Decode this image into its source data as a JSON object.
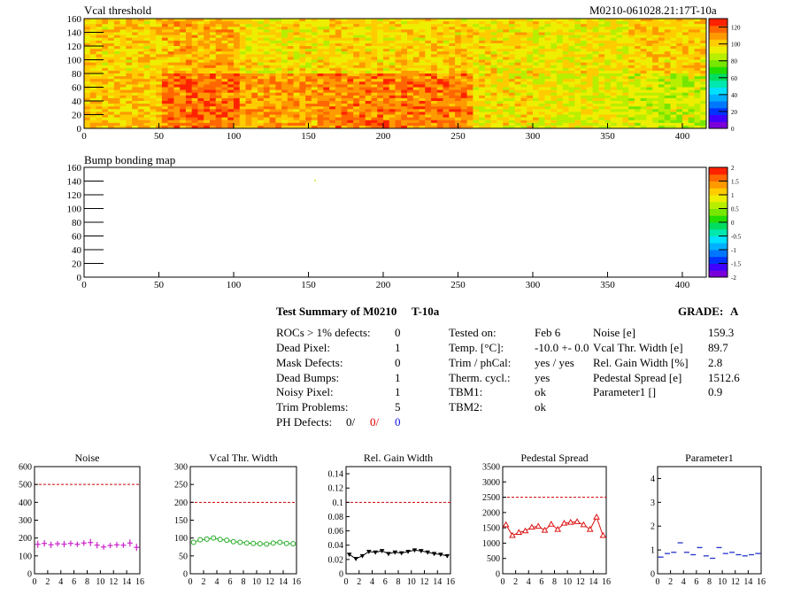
{
  "module_id": "M0210-061028.21:17T-10a",
  "vcal_map": {
    "title": "Vcal threshold",
    "x_ticks": [
      "0",
      "50",
      "100",
      "150",
      "200",
      "250",
      "300",
      "350",
      "400"
    ],
    "y_ticks": [
      "0",
      "20",
      "40",
      "60",
      "80",
      "100",
      "120",
      "140",
      "160"
    ],
    "z_ticks": [
      "0",
      "20",
      "40",
      "60",
      "80",
      "100",
      "120"
    ],
    "xlim": [
      0,
      416
    ],
    "ylim": [
      0,
      160
    ],
    "zlim": [
      0,
      130
    ]
  },
  "bump_map": {
    "title": "Bump bonding map",
    "x_ticks": [
      "0",
      "50",
      "100",
      "150",
      "200",
      "250",
      "300",
      "350",
      "400"
    ],
    "y_ticks": [
      "0",
      "20",
      "40",
      "60",
      "80",
      "100",
      "120",
      "140",
      "160"
    ],
    "z_ticks": [
      "-2",
      "-1.5",
      "-1",
      "-0.5",
      "0",
      "0.5",
      "1",
      "1.5",
      "2"
    ],
    "xlim": [
      0,
      416
    ],
    "ylim": [
      0,
      160
    ],
    "zlim": [
      -2,
      2
    ]
  },
  "summary": {
    "title": "Test Summary of M0210",
    "temp_code": "T-10a",
    "grade_label": "GRADE:",
    "grade_value": "A",
    "defects": [
      {
        "label": "ROCs > 1% defects:",
        "value": "0"
      },
      {
        "label": "Dead Pixel:",
        "value": "1"
      },
      {
        "label": "Mask Defects:",
        "value": "0"
      },
      {
        "label": "Dead Bumps:",
        "value": "1"
      },
      {
        "label": "Noisy Pixel:",
        "value": "1"
      },
      {
        "label": "Trim Problems:",
        "value": "5"
      }
    ],
    "ph_defects": {
      "label": "PH Defects:",
      "v1": "0/",
      "v2": "0/",
      "v3": "0"
    },
    "conditions": [
      {
        "label": "Tested on:",
        "value": "Feb 6"
      },
      {
        "label": "Temp. [°C]:",
        "value": "-10.0 +- 0.0"
      },
      {
        "label": "Trim / phCal:",
        "value": "yes / yes"
      },
      {
        "label": "Therm. cycl.:",
        "value": "yes"
      },
      {
        "label": "TBM1:",
        "value": "ok"
      },
      {
        "label": "TBM2:",
        "value": "ok"
      }
    ],
    "results": [
      {
        "label": "Noise [e]",
        "value": "159.3"
      },
      {
        "label": "Vcal Thr. Width [e]",
        "value": "89.7"
      },
      {
        "label": "Rel. Gain Width [%]",
        "value": "2.8"
      },
      {
        "label": "Pedestal Spread [e]",
        "value": "1512.6"
      },
      {
        "label": "Parameter1 []",
        "value": "0.9"
      }
    ]
  },
  "chart_data": [
    {
      "type": "heatmap",
      "title": "Vcal threshold",
      "x_range": [
        0,
        416
      ],
      "y_range": [
        0,
        160
      ],
      "z_range": [
        0,
        130
      ],
      "roc_grid": [
        8,
        2
      ],
      "roc_mean_top": [
        100,
        105,
        96,
        98,
        100,
        96,
        95,
        100
      ],
      "roc_mean_bottom": [
        102,
        115,
        108,
        113,
        114,
        96,
        92,
        88
      ]
    },
    {
      "type": "heatmap",
      "title": "Bump bonding map",
      "x_range": [
        0,
        416
      ],
      "y_range": [
        0,
        160
      ],
      "z_range": [
        -2,
        2
      ],
      "points": [
        {
          "x": 154,
          "y": 142,
          "z": 0.5
        }
      ]
    },
    {
      "type": "scatter",
      "title": "Noise",
      "x": [
        0,
        1,
        2,
        3,
        4,
        5,
        6,
        7,
        8,
        9,
        10,
        11,
        12,
        13,
        14,
        15
      ],
      "values": [
        165,
        170,
        162,
        168,
        166,
        170,
        165,
        172,
        175,
        160,
        150,
        158,
        162,
        160,
        172,
        148
      ],
      "errors": [
        20,
        18,
        18,
        15,
        18,
        16,
        15,
        16,
        20,
        18,
        15,
        15,
        16,
        15,
        20,
        20
      ],
      "xlim": [
        0,
        16
      ],
      "ylim": [
        0,
        600
      ],
      "ref_line": 500,
      "y_ticks": [
        "0",
        "100",
        "200",
        "300",
        "400",
        "500",
        "600"
      ],
      "x_ticks": [
        "0",
        "2",
        "4",
        "6",
        "8",
        "10",
        "12",
        "14",
        "16"
      ],
      "color": "#cc22cc",
      "marker": "cross"
    },
    {
      "type": "line",
      "title": "Vcal Thr. Width",
      "x": [
        0,
        1,
        2,
        3,
        4,
        5,
        6,
        7,
        8,
        9,
        10,
        11,
        12,
        13,
        14,
        15
      ],
      "values": [
        88,
        95,
        97,
        100,
        96,
        94,
        90,
        88,
        86,
        85,
        84,
        83,
        86,
        88,
        85,
        84
      ],
      "xlim": [
        0,
        16
      ],
      "ylim": [
        0,
        300
      ],
      "ref_line": 200,
      "y_ticks": [
        "0",
        "50",
        "100",
        "150",
        "200",
        "250",
        "300"
      ],
      "x_ticks": [
        "0",
        "2",
        "4",
        "6",
        "8",
        "10",
        "12",
        "14",
        "16"
      ],
      "color": "#22aa22",
      "marker": "circle"
    },
    {
      "type": "line",
      "title": "Rel. Gain Width",
      "x": [
        0,
        1,
        2,
        3,
        4,
        5,
        6,
        7,
        8,
        9,
        10,
        11,
        12,
        13,
        14,
        15
      ],
      "values": [
        0.027,
        0.021,
        0.025,
        0.031,
        0.03,
        0.032,
        0.028,
        0.03,
        0.029,
        0.031,
        0.033,
        0.032,
        0.03,
        0.028,
        0.027,
        0.025
      ],
      "xlim": [
        0,
        16
      ],
      "ylim": [
        0,
        0.15
      ],
      "ref_line": 0.1,
      "y_ticks": [
        "0",
        "0.02",
        "0.04",
        "0.06",
        "0.08",
        "0.1",
        "0.12",
        "0.14"
      ],
      "x_ticks": [
        "0",
        "2",
        "4",
        "6",
        "8",
        "10",
        "12",
        "14",
        "16"
      ],
      "color": "#000000",
      "marker": "triangle-down"
    },
    {
      "type": "line",
      "title": "Pedestal Spread",
      "x": [
        0,
        1,
        2,
        3,
        4,
        5,
        6,
        7,
        8,
        9,
        10,
        11,
        12,
        13,
        14,
        15
      ],
      "values": [
        1600,
        1250,
        1350,
        1400,
        1520,
        1550,
        1420,
        1620,
        1450,
        1650,
        1680,
        1700,
        1600,
        1450,
        1850,
        1250
      ],
      "xlim": [
        0,
        16
      ],
      "ylim": [
        0,
        3500
      ],
      "ref_line": 2500,
      "y_ticks": [
        "0",
        "500",
        "1000",
        "1500",
        "2000",
        "2500",
        "3000",
        "3500"
      ],
      "x_ticks": [
        "0",
        "2",
        "4",
        "6",
        "8",
        "10",
        "12",
        "14",
        "16"
      ],
      "color": "#dd1111",
      "marker": "triangle-up"
    },
    {
      "type": "scatter",
      "title": "Parameter1",
      "x": [
        0,
        1,
        2,
        3,
        4,
        5,
        6,
        7,
        8,
        9,
        10,
        11,
        12,
        13,
        14,
        15
      ],
      "values": [
        0.7,
        0.85,
        0.9,
        1.3,
        0.9,
        0.8,
        1.1,
        0.75,
        0.65,
        1.1,
        0.85,
        0.9,
        0.8,
        0.75,
        0.8,
        0.85
      ],
      "xlim": [
        0,
        16
      ],
      "ylim": [
        0,
        4.5
      ],
      "y_ticks": [
        "0",
        "1",
        "2",
        "3",
        "4"
      ],
      "x_ticks": [
        "0",
        "2",
        "4",
        "6",
        "8",
        "10",
        "12",
        "14",
        "16"
      ],
      "color": "#2233cc",
      "marker": "hbar"
    }
  ]
}
